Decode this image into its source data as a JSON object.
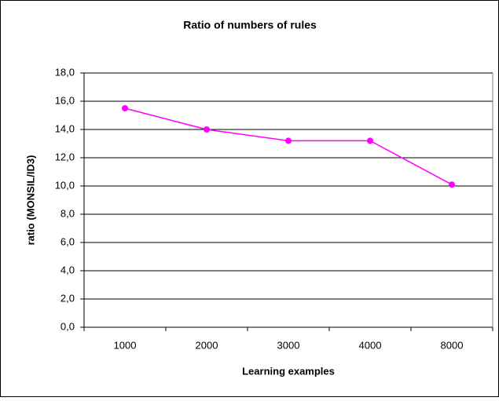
{
  "chart_data": {
    "type": "line",
    "title": "Ratio of numbers of rules",
    "x_label": "Learning examples",
    "y_label": "ratio (MONSIL/ID3)",
    "categories": [
      "1000",
      "2000",
      "3000",
      "4000",
      "8000"
    ],
    "series": [
      {
        "name": "ratio",
        "color": "#ff00ff",
        "values": [
          15.5,
          14.0,
          13.2,
          13.2,
          10.1
        ]
      }
    ],
    "ylim": [
      0,
      18
    ],
    "yticks": [
      {
        "value": 0,
        "label": "0,0"
      },
      {
        "value": 2,
        "label": "2,0"
      },
      {
        "value": 4,
        "label": "4,0"
      },
      {
        "value": 6,
        "label": "6,0"
      },
      {
        "value": 8,
        "label": "8,0"
      },
      {
        "value": 10,
        "label": "10,0"
      },
      {
        "value": 12,
        "label": "12,0"
      },
      {
        "value": 14,
        "label": "14,0"
      },
      {
        "value": 16,
        "label": "16,0"
      },
      {
        "value": 18,
        "label": "18,0"
      }
    ],
    "grid": true
  }
}
